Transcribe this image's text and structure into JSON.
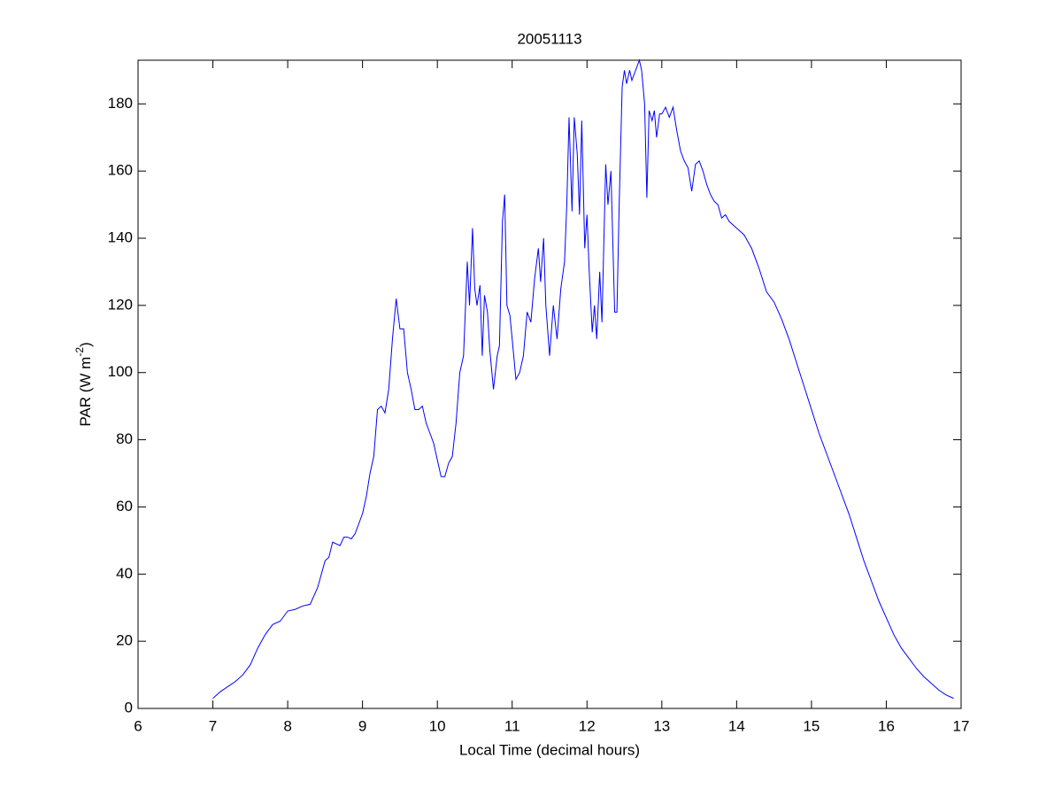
{
  "chart_data": {
    "type": "line",
    "title": "20051113",
    "xlabel": "Local Time (decimal hours)",
    "ylabel": {
      "text": "PAR (W m",
      "superscript": "-2",
      "suffix": ")"
    },
    "xlim": [
      6,
      17
    ],
    "xticks": [
      6,
      7,
      8,
      9,
      10,
      11,
      12,
      13,
      14,
      15,
      16,
      17
    ],
    "ylim": [
      0,
      193
    ],
    "yticks": [
      0,
      20,
      40,
      60,
      80,
      100,
      120,
      140,
      160,
      180
    ],
    "grid": false,
    "series": [
      {
        "color": "#0000ff",
        "x": [
          7.0,
          7.1,
          7.2,
          7.3,
          7.4,
          7.5,
          7.6,
          7.7,
          7.8,
          7.9,
          8.0,
          8.1,
          8.2,
          8.3,
          8.4,
          8.5,
          8.55,
          8.6,
          8.65,
          8.7,
          8.75,
          8.8,
          8.85,
          8.9,
          9.0,
          9.05,
          9.1,
          9.15,
          9.2,
          9.25,
          9.3,
          9.35,
          9.4,
          9.45,
          9.5,
          9.55,
          9.6,
          9.65,
          9.7,
          9.75,
          9.8,
          9.85,
          9.9,
          9.95,
          10.0,
          10.05,
          10.1,
          10.15,
          10.2,
          10.25,
          10.3,
          10.35,
          10.4,
          10.43,
          10.47,
          10.5,
          10.53,
          10.57,
          10.6,
          10.63,
          10.67,
          10.7,
          10.75,
          10.8,
          10.83,
          10.87,
          10.9,
          10.93,
          10.97,
          11.0,
          11.05,
          11.1,
          11.15,
          11.2,
          11.25,
          11.3,
          11.35,
          11.38,
          11.42,
          11.45,
          11.5,
          11.55,
          11.6,
          11.65,
          11.7,
          11.73,
          11.76,
          11.8,
          11.83,
          11.87,
          11.9,
          11.93,
          11.97,
          12.0,
          12.03,
          12.07,
          12.1,
          12.13,
          12.17,
          12.2,
          12.25,
          12.28,
          12.32,
          12.37,
          12.4,
          12.43,
          12.47,
          12.5,
          12.53,
          12.57,
          12.6,
          12.65,
          12.7,
          12.73,
          12.77,
          12.8,
          12.83,
          12.87,
          12.9,
          12.93,
          12.97,
          13.0,
          13.05,
          13.1,
          13.15,
          13.2,
          13.25,
          13.3,
          13.35,
          13.4,
          13.45,
          13.5,
          13.55,
          13.6,
          13.65,
          13.7,
          13.75,
          13.8,
          13.85,
          13.9,
          13.95,
          14.0,
          14.1,
          14.2,
          14.3,
          14.4,
          14.5,
          14.6,
          14.7,
          14.8,
          14.9,
          15.0,
          15.1,
          15.2,
          15.3,
          15.4,
          15.5,
          15.6,
          15.7,
          15.8,
          15.9,
          16.0,
          16.1,
          16.2,
          16.3,
          16.4,
          16.5,
          16.6,
          16.7,
          16.8,
          16.9
        ],
        "values": [
          3,
          5,
          6.5,
          8,
          10,
          13,
          18,
          22,
          25,
          26,
          29,
          29.5,
          30.5,
          31,
          36,
          44,
          45,
          49.5,
          49,
          48.5,
          51,
          51,
          50.5,
          52,
          58,
          63,
          70,
          75,
          89,
          90,
          88,
          95,
          110,
          122,
          113,
          113,
          100,
          95,
          89,
          89,
          90,
          85,
          82,
          79,
          74,
          69,
          69,
          73,
          75,
          85,
          100,
          105,
          133,
          120,
          143,
          125,
          120,
          126,
          105,
          123,
          118,
          107,
          95,
          105,
          108,
          145,
          153,
          120,
          117,
          110,
          98,
          100,
          105,
          118,
          115,
          128,
          137,
          127,
          140,
          120,
          105,
          120,
          110,
          125,
          133,
          150,
          176,
          148,
          176,
          165,
          147,
          175,
          137,
          147,
          130,
          112,
          120,
          110,
          130,
          115,
          162,
          150,
          160,
          118,
          118,
          150,
          185,
          190,
          186,
          190,
          187,
          190,
          193,
          190,
          180,
          152,
          178,
          175,
          178,
          170,
          177,
          177,
          179,
          176,
          179,
          172,
          166,
          163,
          161,
          154,
          162,
          163,
          160,
          156,
          153,
          151,
          150,
          146,
          147,
          145,
          144,
          143,
          141,
          137,
          131,
          124,
          121,
          116,
          110,
          103,
          96,
          89,
          82,
          76,
          70,
          64,
          58,
          51,
          44,
          38,
          32,
          27,
          22,
          18,
          15,
          12,
          9.5,
          7.5,
          5.5,
          4,
          3
        ]
      }
    ]
  }
}
